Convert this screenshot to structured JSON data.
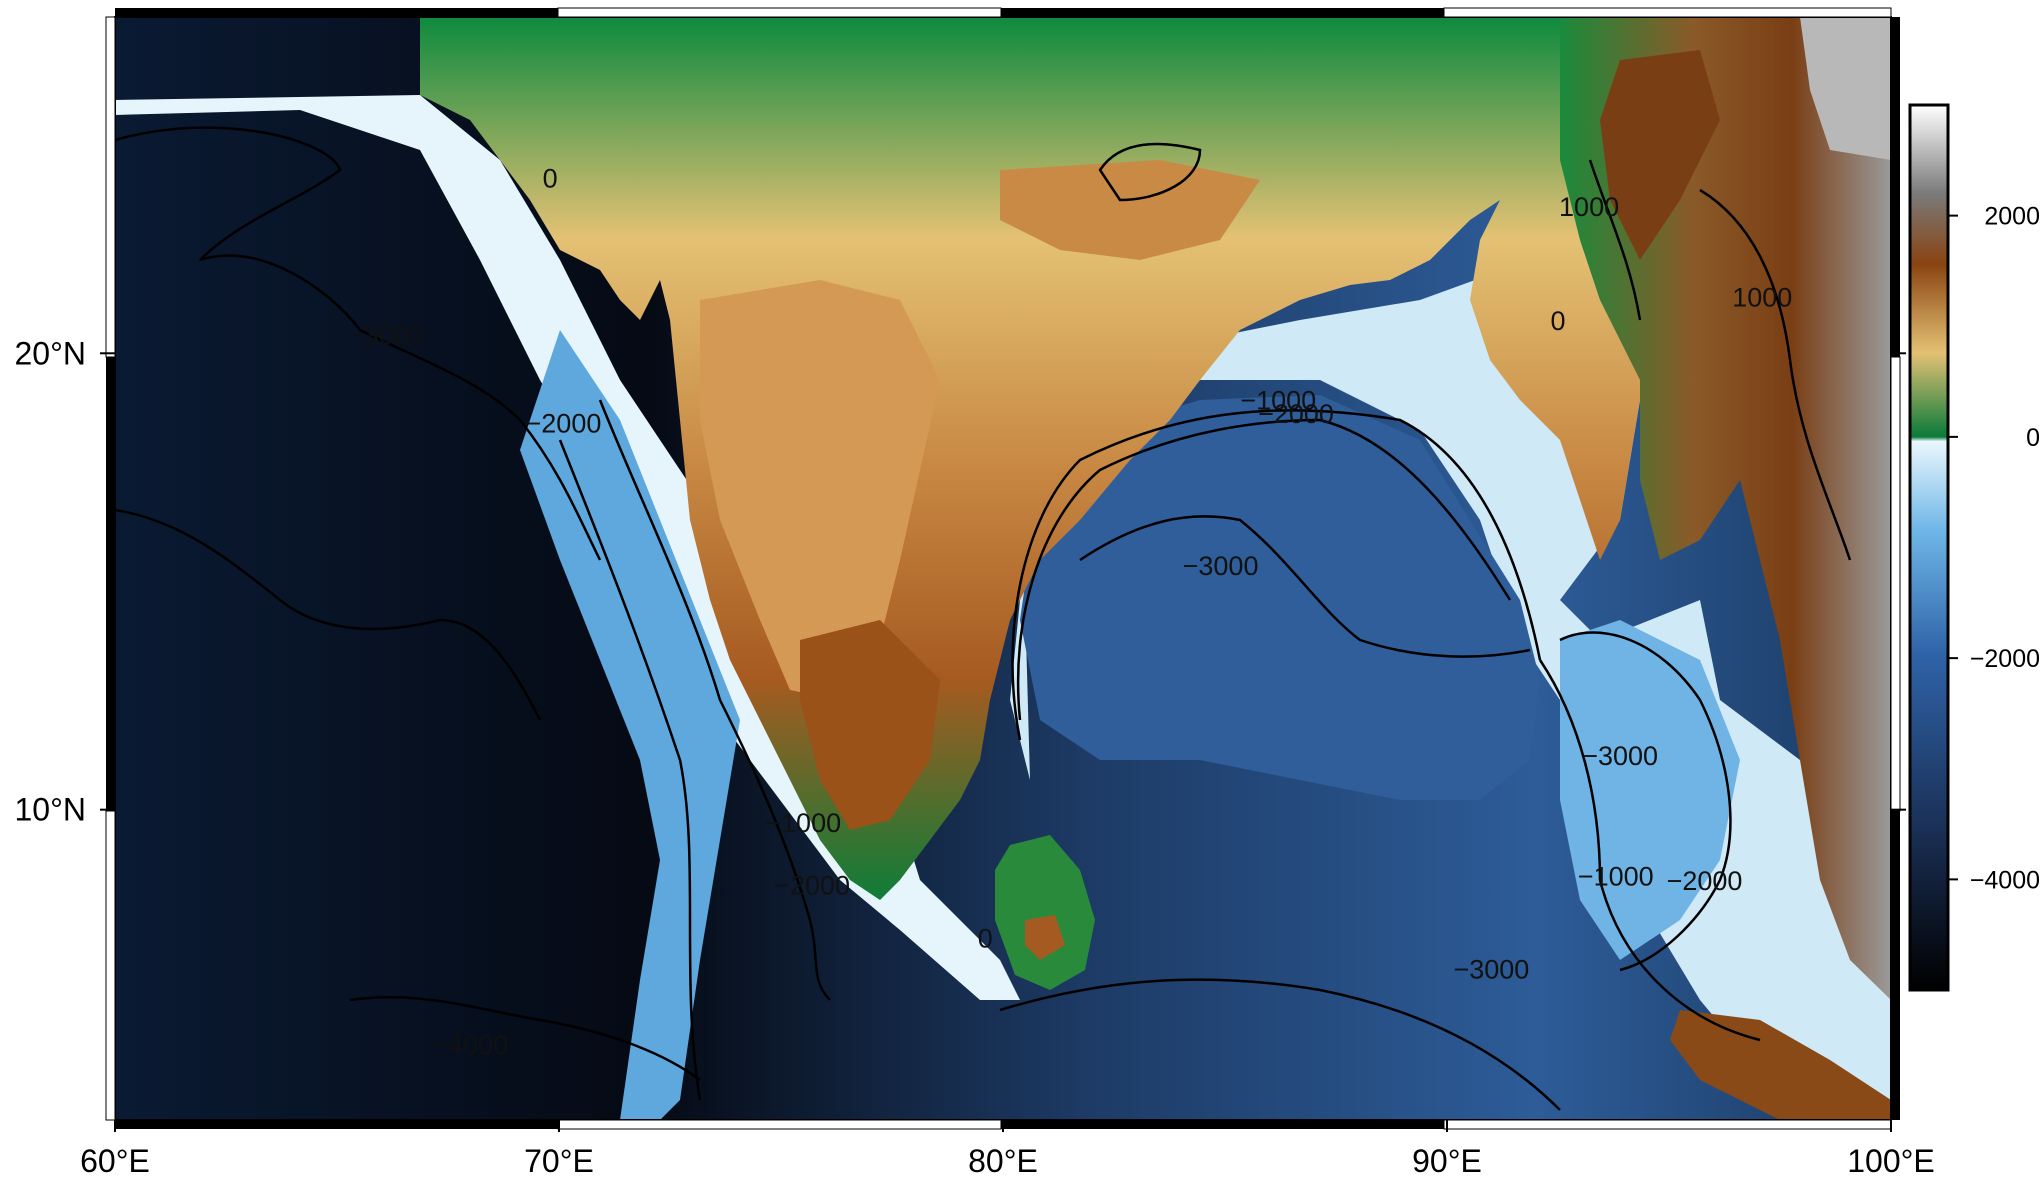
{
  "map": {
    "projection": "Mercator",
    "region": {
      "lon_min": 60,
      "lon_max": 100,
      "lat_min": 3,
      "lat_max": 27
    },
    "features": [
      "Indian subcontinent",
      "Sri Lanka",
      "Bay of Bengal",
      "Arabian Sea",
      "Andaman Sea"
    ],
    "colormap": "geo (bathymetry / topography)",
    "colors": {
      "deep_ocean": "#05070f",
      "ocean": "#2c5e9c",
      "shelf": "#e8f6fc",
      "lowland": "#0a7a3a",
      "upland": "#e8c27a",
      "highland": "#7a3a10",
      "peak": "#ffffff"
    }
  },
  "x_ticks": [
    {
      "value": 60,
      "label": "60°E"
    },
    {
      "value": 70,
      "label": "70°E"
    },
    {
      "value": 80,
      "label": "80°E"
    },
    {
      "value": 90,
      "label": "90°E"
    },
    {
      "value": 100,
      "label": "100°E"
    }
  ],
  "y_ticks": [
    {
      "value": 10,
      "label": "10°N"
    },
    {
      "value": 20,
      "label": "20°N"
    }
  ],
  "colorbar": {
    "range": [
      -5000,
      3000
    ],
    "ticks": [
      {
        "value": 2000,
        "label": "2000"
      },
      {
        "value": 0,
        "label": "0"
      },
      {
        "value": -2000,
        "label": "−2000"
      },
      {
        "value": -4000,
        "label": "−4000"
      }
    ]
  },
  "contour_labels": [
    {
      "text": "0",
      "lon": 69.8,
      "lat": 23.5
    },
    {
      "text": "−3000",
      "lon": 66.1,
      "lat": 20.2
    },
    {
      "text": "−2000",
      "lon": 70.1,
      "lat": 18.3
    },
    {
      "text": "1000",
      "lon": 93.2,
      "lat": 22.9
    },
    {
      "text": "1000",
      "lon": 97.1,
      "lat": 21.0
    },
    {
      "text": "0",
      "lon": 92.5,
      "lat": 20.5
    },
    {
      "text": "−1000",
      "lon": 86.2,
      "lat": 18.8
    },
    {
      "text": "−2000",
      "lon": 86.6,
      "lat": 18.5
    },
    {
      "text": "−3000",
      "lon": 84.9,
      "lat": 15.2
    },
    {
      "text": "−1000",
      "lon": 75.5,
      "lat": 9.5
    },
    {
      "text": "−2000",
      "lon": 75.7,
      "lat": 8.1
    },
    {
      "text": "0",
      "lon": 79.6,
      "lat": 6.9
    },
    {
      "text": "−3000",
      "lon": 93.9,
      "lat": 11.0
    },
    {
      "text": "−1000",
      "lon": 93.8,
      "lat": 8.3
    },
    {
      "text": "−2000",
      "lon": 95.8,
      "lat": 8.2
    },
    {
      "text": "−3000",
      "lon": 91.0,
      "lat": 6.2
    },
    {
      "text": "−4000",
      "lon": 68.0,
      "lat": 4.5
    }
  ]
}
